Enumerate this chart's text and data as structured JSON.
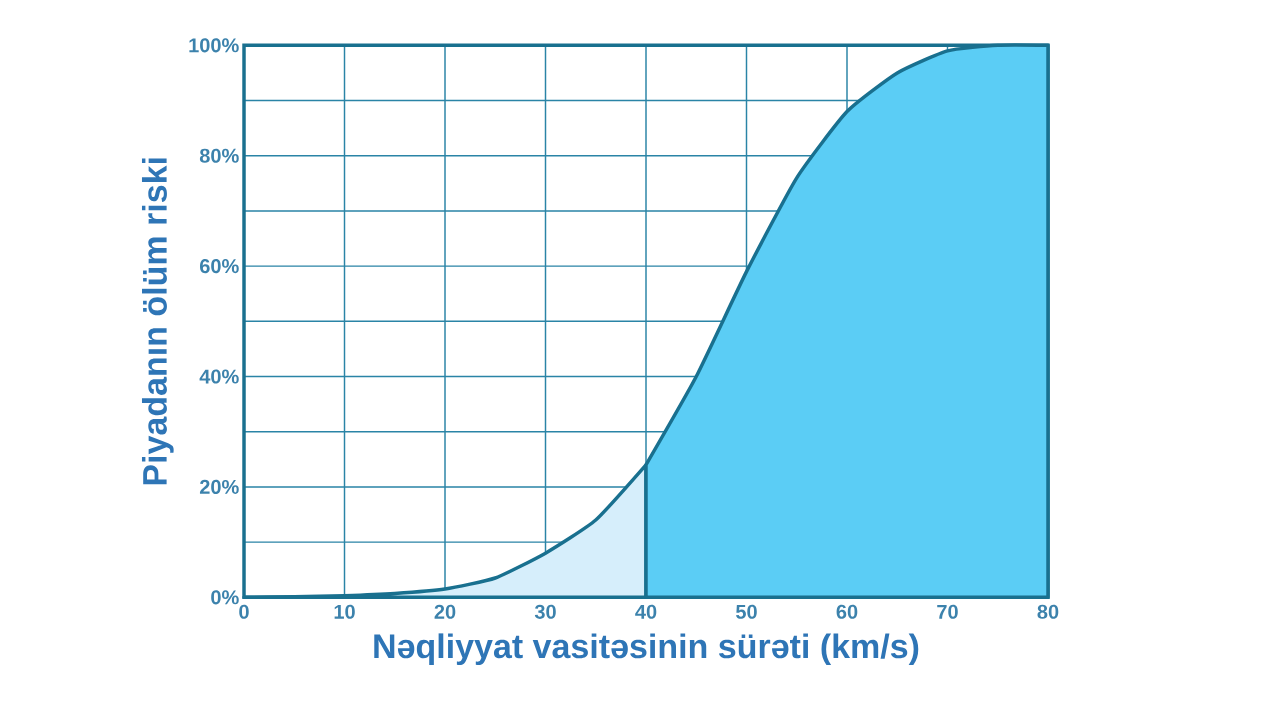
{
  "chart_data": {
    "type": "area",
    "xlabel": "Nəqliyyat vasitəsinin sürəti (km/s)",
    "ylabel": "Piyadanın ölüm riski",
    "series": [
      {
        "color": "#d6eefb",
        "x": [
          0,
          5,
          10,
          15,
          20,
          25,
          30,
          35,
          40
        ],
        "values": [
          0,
          0.1,
          0.3,
          0.7,
          1.5,
          3.5,
          8,
          14,
          24
        ]
      },
      {
        "color": "#5bcdf5",
        "x": [
          40,
          45,
          50,
          55,
          60,
          65,
          70,
          75,
          80
        ],
        "values": [
          24,
          40,
          59,
          76,
          88,
          95,
          99,
          100,
          100
        ]
      }
    ],
    "xlim": [
      0,
      80
    ],
    "xticks": [
      0,
      10,
      20,
      30,
      40,
      50,
      60,
      70,
      80
    ],
    "ylim": [
      0,
      100
    ],
    "yticks": [
      {
        "value": 0,
        "label": "0%"
      },
      {
        "value": 10,
        "label": null
      },
      {
        "value": 20,
        "label": "20%"
      },
      {
        "value": 30,
        "label": null
      },
      {
        "value": 40,
        "label": "40%"
      },
      {
        "value": 50,
        "label": null
      },
      {
        "value": 60,
        "label": "60%"
      },
      {
        "value": 70,
        "label": null
      },
      {
        "value": 80,
        "label": "80%"
      },
      {
        "value": 90,
        "label": null
      },
      {
        "value": 100,
        "label": "100%"
      }
    ],
    "grid": true
  }
}
